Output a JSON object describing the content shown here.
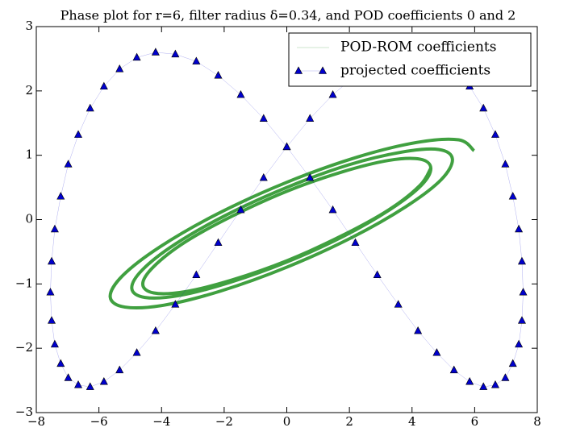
{
  "chart_data": {
    "type": "phase",
    "title": "Phase plot for r=6, filter radius δ=0.34, and POD coefficients 0 and 2",
    "xlim": [
      -8,
      8
    ],
    "xticks": [
      {
        "value": -8,
        "label": "−8"
      },
      {
        "value": -6,
        "label": "−6"
      },
      {
        "value": -4,
        "label": "−4"
      },
      {
        "value": -2,
        "label": "−2"
      },
      0,
      2,
      4,
      6,
      8
    ],
    "ylim": [
      -3,
      3
    ],
    "yticks": [
      {
        "value": -3,
        "label": "−3"
      },
      {
        "value": -2,
        "label": "−2"
      },
      {
        "value": -1,
        "label": "−1"
      },
      0,
      1,
      2,
      3
    ],
    "legend": "upper right",
    "series": [
      {
        "name": "POD-ROM coefficients",
        "color": "#008000",
        "style": "line",
        "x": [
          5.98,
          5.49,
          4.16,
          2.24,
          0,
          -2.21,
          -4.04,
          -5.24,
          -5.64,
          -5.17,
          -3.92,
          -2.11,
          0,
          2.07,
          3.8,
          4.93,
          5.29,
          4.85,
          3.68,
          1.97,
          0,
          -1.94,
          -3.56,
          -4.61,
          -4.95,
          -4.53,
          -3.43,
          -1.84,
          0,
          1.81,
          3.31,
          4.29,
          4.6,
          4.25,
          3.25,
          1.76,
          0,
          -1.76,
          -3.25,
          -4.25,
          -4.6,
          -4.25,
          -3.25,
          -1.76,
          0,
          1.76,
          3.25,
          4.25,
          4.6
        ],
        "y": [
          1.07,
          1.24,
          1.2,
          0.97,
          0.58,
          0.09,
          -0.42,
          -0.87,
          -1.2,
          -1.36,
          -1.33,
          -1.11,
          -0.74,
          -0.28,
          0.2,
          0.62,
          0.94,
          1.09,
          1.05,
          0.85,
          0.5,
          0.07,
          -0.38,
          -0.78,
          -1.07,
          -1.21,
          -1.18,
          -0.98,
          -0.66,
          -0.26,
          0.16,
          0.53,
          0.8,
          0.94,
          0.92,
          0.74,
          0.44,
          0.05,
          -0.35,
          -0.73,
          -1.0,
          -1.14,
          -1.12,
          -0.94,
          -0.64,
          -0.25,
          0.15,
          0.53,
          0.8
        ]
      },
      {
        "name": "projected coefficients",
        "color": "#0000cc",
        "style": "triangles",
        "x": [
          0,
          0.74,
          1.47,
          2.19,
          2.89,
          3.56,
          4.19,
          4.79,
          5.34,
          5.84,
          6.28,
          6.66,
          6.98,
          7.22,
          7.41,
          7.51,
          7.55,
          7.51,
          7.41,
          7.22,
          6.98,
          6.66,
          6.28,
          5.84,
          5.34,
          4.79,
          4.19,
          3.56,
          2.89,
          2.19,
          1.47,
          0.74,
          0,
          -0.74,
          -1.47,
          -2.19,
          -2.89,
          -3.56,
          -4.19,
          -4.79,
          -5.34,
          -5.84,
          -6.28,
          -6.66,
          -6.98,
          -7.22,
          -7.41,
          -7.51,
          -7.55,
          -7.51,
          -7.41,
          -7.22,
          -6.98,
          -6.66,
          -6.28,
          -5.84,
          -5.34,
          -4.79,
          -4.19,
          -3.56,
          -2.89,
          -2.19,
          -1.47,
          -0.74
        ],
        "y": [
          1.13,
          1.57,
          1.94,
          2.24,
          2.46,
          2.57,
          2.6,
          2.52,
          2.34,
          2.07,
          1.73,
          1.32,
          0.86,
          0.36,
          -0.15,
          -0.65,
          -1.13,
          -1.57,
          -1.94,
          -2.24,
          -2.46,
          -2.57,
          -2.6,
          -2.52,
          -2.34,
          -2.07,
          -1.73,
          -1.32,
          -0.86,
          -0.36,
          0.15,
          0.65,
          1.13,
          1.57,
          1.94,
          2.24,
          2.46,
          2.57,
          2.6,
          2.52,
          2.34,
          2.07,
          1.73,
          1.32,
          0.86,
          0.36,
          -0.15,
          -0.65,
          -1.13,
          -1.57,
          -1.94,
          -2.24,
          -2.46,
          -2.57,
          -2.6,
          -2.52,
          -2.34,
          -2.07,
          -1.73,
          -1.32,
          -0.86,
          -0.36,
          0.15,
          0.65
        ]
      }
    ]
  }
}
